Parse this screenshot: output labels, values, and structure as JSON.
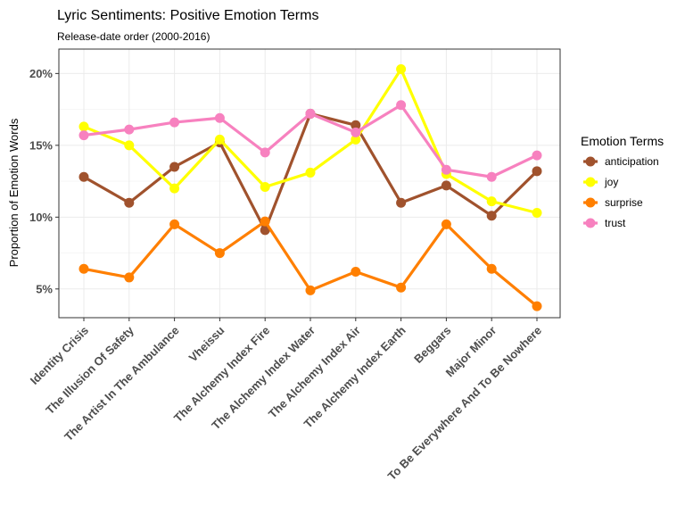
{
  "chart_data": {
    "type": "line",
    "title": "Lyric Sentiments: Positive Emotion Terms",
    "subtitle": "Release-date order (2000-2016)",
    "ylabel": "Proportion of Emotion Words",
    "xlabel": "",
    "ylim": [
      3,
      21.7
    ],
    "yticks": [
      5,
      10,
      15,
      20
    ],
    "ytick_labels": [
      "5%",
      "10%",
      "15%",
      "20%"
    ],
    "grid": true,
    "legend": {
      "title": "Emotion Terms",
      "position": "right"
    },
    "categories": [
      "Identity Crisis",
      "The Illusion Of Safety",
      "The Artist In The Ambulance",
      "Vheissu",
      "The Alchemy Index Fire",
      "The Alchemy Index Water",
      "The Alchemy Index Air",
      "The Alchemy Index Earth",
      "Beggars",
      "Major Minor",
      "To Be Everywhere And To Be Nowhere"
    ],
    "series": [
      {
        "name": "anticipation",
        "color": "#a0522d",
        "values": [
          12.8,
          11.0,
          13.5,
          15.2,
          9.1,
          17.2,
          16.4,
          11.0,
          12.2,
          10.1,
          13.2
        ]
      },
      {
        "name": "joy",
        "color": "#ffff00",
        "values": [
          16.3,
          15.0,
          12.0,
          15.4,
          12.1,
          13.1,
          15.4,
          20.3,
          13.0,
          11.1,
          10.3
        ]
      },
      {
        "name": "surprise",
        "color": "#ff7f00",
        "values": [
          6.4,
          5.8,
          9.5,
          7.5,
          9.7,
          4.9,
          6.2,
          5.1,
          9.5,
          6.4,
          3.8
        ]
      },
      {
        "name": "trust",
        "color": "#f781bf",
        "values": [
          15.7,
          16.1,
          16.6,
          16.9,
          14.5,
          17.2,
          15.9,
          17.8,
          13.3,
          12.8,
          14.3
        ]
      }
    ]
  }
}
